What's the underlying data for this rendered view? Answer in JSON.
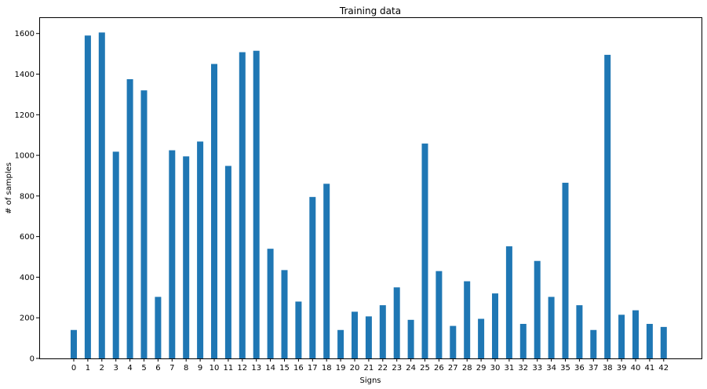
{
  "chart_data": {
    "type": "bar",
    "title": "Training data",
    "xlabel": "Signs",
    "ylabel": "# of samples",
    "categories": [
      "0",
      "1",
      "2",
      "3",
      "4",
      "5",
      "6",
      "7",
      "8",
      "9",
      "10",
      "11",
      "12",
      "13",
      "14",
      "15",
      "16",
      "17",
      "18",
      "19",
      "20",
      "21",
      "22",
      "23",
      "24",
      "25",
      "26",
      "27",
      "28",
      "29",
      "30",
      "31",
      "32",
      "33",
      "34",
      "35",
      "36",
      "37",
      "38",
      "39",
      "40",
      "41",
      "42"
    ],
    "values": [
      140,
      1590,
      1605,
      1018,
      1375,
      1320,
      303,
      1025,
      995,
      1068,
      1450,
      948,
      1508,
      1515,
      540,
      435,
      280,
      795,
      860,
      140,
      230,
      207,
      262,
      350,
      190,
      1058,
      430,
      160,
      380,
      195,
      320,
      552,
      170,
      480,
      303,
      865,
      262,
      140,
      1495,
      215,
      237,
      170,
      155
    ],
    "yticks": [
      0,
      200,
      400,
      600,
      800,
      1000,
      1200,
      1400,
      1600
    ],
    "ylim": [
      0,
      1680
    ],
    "bar_color": "#1f77b4",
    "grid": false,
    "legend": "none"
  }
}
